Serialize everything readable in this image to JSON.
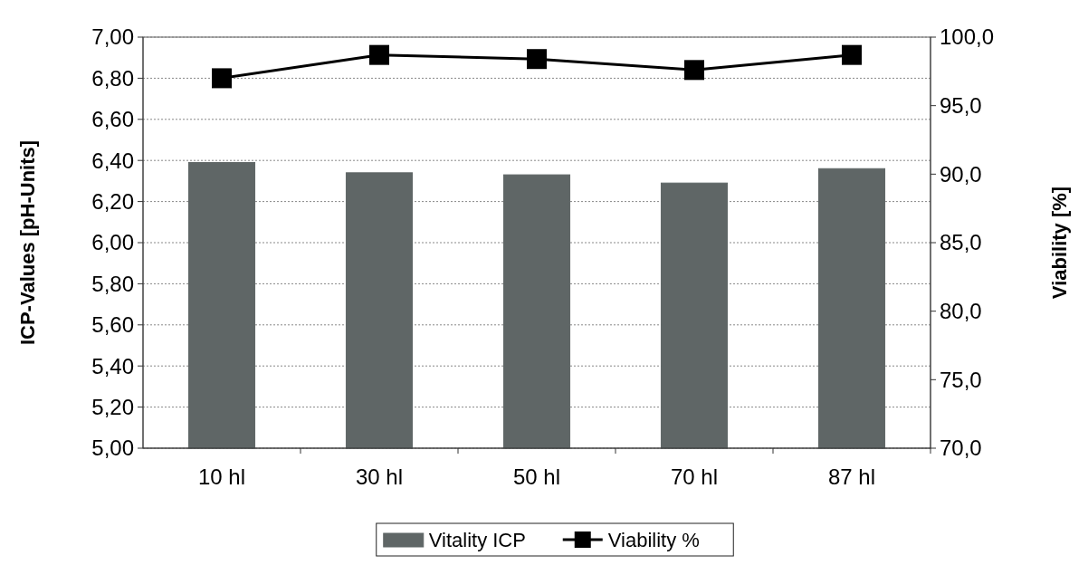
{
  "chart_data": {
    "type": "bar",
    "ylabel": "ICP-Values [pH-Units]",
    "y2label": "Viability [%]",
    "categories": [
      "10 hl",
      "30 hl",
      "50 hl",
      "70 hl",
      "87 hl"
    ],
    "series": [
      {
        "name": "Vitality ICP",
        "color": "#5f6666",
        "values": [
          6.39,
          6.34,
          6.33,
          6.29,
          6.36
        ]
      },
      {
        "name": "Viability %",
        "type": "line",
        "axis": "y2",
        "color": "#000000",
        "marker": "square",
        "values": [
          97.0,
          98.7,
          98.4,
          97.6,
          98.7
        ]
      }
    ],
    "ylim": [
      5,
      7
    ],
    "yticks": [
      {
        "value": 5,
        "label": "5,00"
      },
      {
        "value": 5.2,
        "label": "5,20"
      },
      {
        "value": 5.4,
        "label": "5,40"
      },
      {
        "value": 5.6,
        "label": "5,60"
      },
      {
        "value": 5.8,
        "label": "5,80"
      },
      {
        "value": 6,
        "label": "6,00"
      },
      {
        "value": 6.2,
        "label": "6,20"
      },
      {
        "value": 6.4,
        "label": "6,40"
      },
      {
        "value": 6.6,
        "label": "6,60"
      },
      {
        "value": 6.8,
        "label": "6,80"
      },
      {
        "value": 7,
        "label": "7,00"
      }
    ],
    "y2lim": [
      70,
      100
    ],
    "y2ticks": [
      {
        "value": 70,
        "label": "70,0"
      },
      {
        "value": 75,
        "label": "75,0"
      },
      {
        "value": 80,
        "label": "80,0"
      },
      {
        "value": 85,
        "label": "85,0"
      },
      {
        "value": 90,
        "label": "90,0"
      },
      {
        "value": 95,
        "label": "95,0"
      },
      {
        "value": 100,
        "label": "100,0"
      }
    ],
    "grid": "y",
    "legend": "bottom"
  }
}
